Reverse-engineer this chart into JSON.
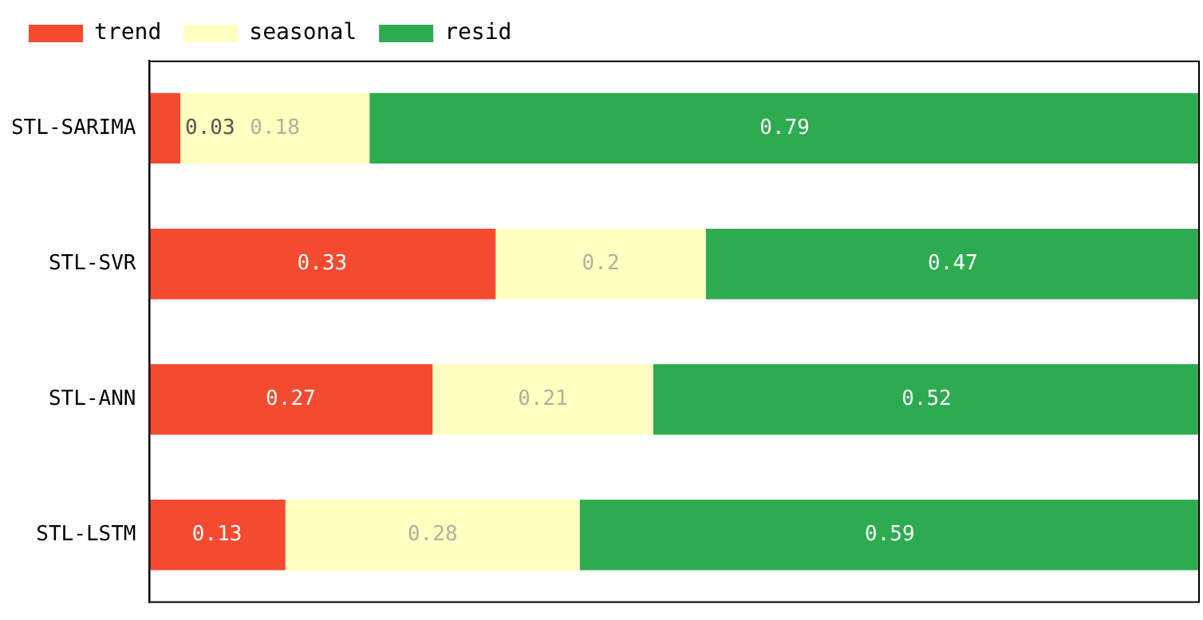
{
  "chart_data": {
    "type": "bar",
    "orientation": "horizontal",
    "stacked": true,
    "data_labels": true,
    "legend": "top",
    "grid": false,
    "categories": [
      "STL-SARIMA",
      "STL-SVR",
      "STL-ANN",
      "STL-LSTM"
    ],
    "series": [
      {
        "name": "trend",
        "color": "#f44a30",
        "values": [
          0.03,
          0.33,
          0.27,
          0.13
        ]
      },
      {
        "name": "seasonal",
        "color": "#ffffc0",
        "values": [
          0.18,
          0.2,
          0.21,
          0.28
        ]
      },
      {
        "name": "resid",
        "color": "#2dab50",
        "values": [
          0.79,
          0.47,
          0.52,
          0.59
        ]
      }
    ]
  }
}
